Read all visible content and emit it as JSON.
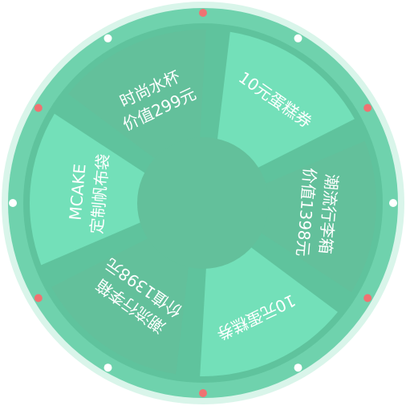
{
  "wheel": {
    "colors": {
      "outer_glow": "#d9f5ea",
      "rim": "#6fd2ad",
      "rim_inner": "#5fc39d",
      "segment_light": "#73e0b9",
      "segment_dark": "#63c09b",
      "center": "#63c09b",
      "dot_red": "#f07272",
      "dot_white": "#ffffff"
    },
    "prizes": [
      {
        "lines": [
          "10元蛋糕券"
        ],
        "shade": "light"
      },
      {
        "lines": [
          "潮流行李箱",
          "价值1398元"
        ],
        "shade": "dark"
      },
      {
        "lines": [
          "10元蛋糕券"
        ],
        "shade": "light"
      },
      {
        "lines": [
          "潮流行李箱",
          "价值1398元"
        ],
        "shade": "dark"
      },
      {
        "lines": [
          "MCAKE",
          "定制帆布袋"
        ],
        "shade": "light"
      },
      {
        "lines": [
          "时尚水杯",
          "价值299元"
        ],
        "shade": "dark"
      }
    ],
    "rim_dots": [
      "red",
      "white",
      "red",
      "white",
      "red",
      "white",
      "red",
      "white",
      "red",
      "white",
      "red",
      "white"
    ]
  }
}
